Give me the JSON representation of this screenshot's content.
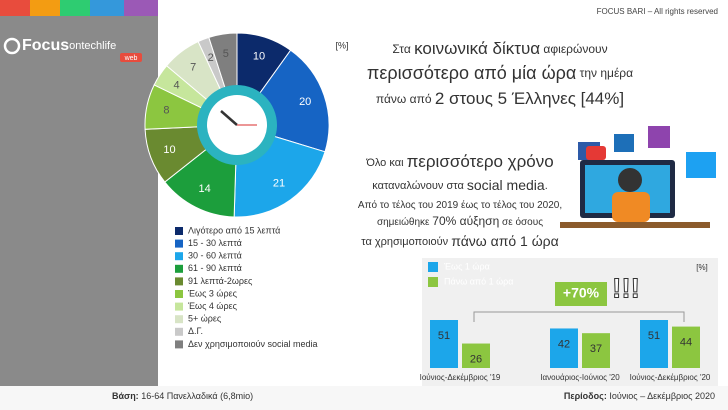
{
  "brand": {
    "name": "Focus",
    "sub": "ontechlife",
    "tag": "web"
  },
  "copyright": "FOCUS BARI – All rights reserved",
  "headline": {
    "lines": [
      [
        "Στα ",
        "κοινωνικά δίκτυα",
        " αφιερώνουν"
      ],
      [
        "περισσότερο από μία ώρα",
        " την ημέρα"
      ],
      [
        "πάνω από ",
        "2 στους 5 Έλληνες",
        " [44%]"
      ]
    ]
  },
  "paragraph": {
    "lines": [
      [
        "Όλο και ",
        "περισσότερο χρόνο"
      ],
      [
        "καταναλώνουν στα ",
        "social media",
        "."
      ],
      [
        "Από το τέλος του 2019 έως το τέλος του 2020,"
      ],
      [
        "σημειώθηκε ",
        "70% αύξηση",
        " σε όσους"
      ],
      [
        "τα χρησιμοποιούν ",
        "πάνω από 1 ώρα"
      ]
    ]
  },
  "footer": {
    "base_label": "Βάση:",
    "base": " 16-64 Πανελλαδικά (6,8mio)",
    "period_label": "Περίοδος:",
    "period": " Ιούνιος – Δεκέμβριος 2020"
  },
  "chart_data": [
    {
      "type": "pie",
      "unit": "[%]",
      "categories": [
        "Λιγότερο από 15 λεπτά",
        "15 - 30 λεπτά",
        "30 - 60 λεπτά",
        "61 - 90 λεπτά",
        "91 λεπτά-2ωρες",
        "Έως 3 ώρες",
        "Έως 4 ώρες",
        "5+ ώρες",
        "Δ.Γ.",
        "Δεν χρησιμοποιούν social media"
      ],
      "values": [
        10,
        20,
        21,
        14,
        10,
        8,
        4,
        7,
        2,
        5
      ],
      "colors": [
        "#0c2a6b",
        "#1664c4",
        "#1ca6ea",
        "#1c9e3c",
        "#6a8a30",
        "#8cc640",
        "#c6e69c",
        "#d8e4c6",
        "#c9c9c9",
        "#7f7f7f"
      ]
    },
    {
      "type": "bar",
      "unit": "[%]",
      "annotation": "+70%",
      "exclaim": "!!!",
      "categories": [
        "Ιούνιος-Δεκέμβριος '19",
        "Ιανουάριος-Ιούνιος '20",
        "Ιούνιος-Δεκέμβριος '20"
      ],
      "series": [
        {
          "name": "Έως 1 ώρα",
          "color": "#1ca6ea",
          "values": [
            51,
            42,
            51
          ]
        },
        {
          "name": "Πάνω από 1 ώρα",
          "color": "#8cc640",
          "values": [
            26,
            37,
            44
          ]
        }
      ]
    }
  ]
}
